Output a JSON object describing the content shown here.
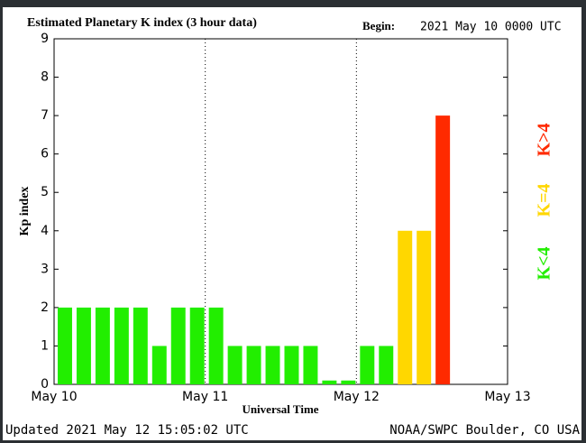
{
  "chart_data": {
    "type": "bar",
    "title": "Estimated Planetary K index (3 hour data)",
    "begin_label": "Begin:",
    "begin_value": "2021 May 10 0000 UTC",
    "xlabel": "Universal Time",
    "ylabel": "Kp index",
    "updated": "Updated 2021 May 12 15:05:02 UTC",
    "credit": "NOAA/SWPC Boulder, CO USA",
    "categories": [
      null,
      null,
      null,
      null,
      null,
      null,
      null,
      null,
      null,
      null,
      null,
      null,
      null,
      null,
      null,
      null,
      null,
      null,
      null,
      null,
      null,
      null,
      null,
      null
    ],
    "values": [
      2,
      2,
      2,
      2,
      2,
      1,
      2,
      2,
      2,
      1,
      1,
      1,
      1,
      1,
      0.1,
      0.1,
      1,
      1,
      4,
      4,
      7,
      null,
      null,
      null
    ],
    "colors": [
      "#22ee00",
      "#22ee00",
      "#22ee00",
      "#22ee00",
      "#22ee00",
      "#22ee00",
      "#22ee00",
      "#22ee00",
      "#22ee00",
      "#22ee00",
      "#22ee00",
      "#22ee00",
      "#22ee00",
      "#22ee00",
      "#22ee00",
      "#22ee00",
      "#22ee00",
      "#22ee00",
      "#ffd700",
      "#ffd700",
      "#ff2a00",
      null,
      null,
      null
    ],
    "xtick_labels": [
      "May 10",
      "May 11",
      "May 12",
      "May 13"
    ],
    "ylim": [
      0,
      9
    ],
    "yticks": [
      0,
      1,
      2,
      3,
      4,
      5,
      6,
      7,
      8,
      9
    ],
    "legend": [
      {
        "label": "K<4",
        "color": "#22ee00"
      },
      {
        "label": "K=4",
        "color": "#ffd700"
      },
      {
        "label": "K>4",
        "color": "#ff2a00"
      }
    ]
  }
}
